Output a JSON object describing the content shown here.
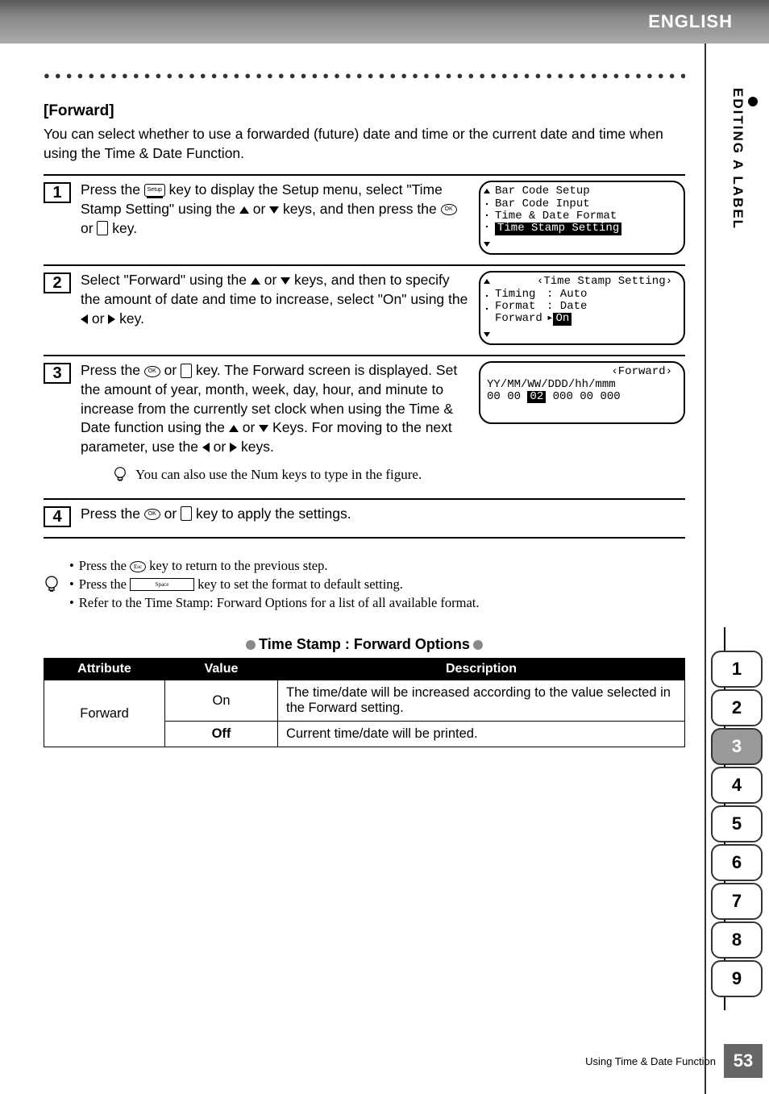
{
  "topbar": {
    "language": "ENGLISH"
  },
  "sidebar": {
    "chapter": "EDITING A LABEL"
  },
  "tabs": {
    "items": [
      "1",
      "2",
      "3",
      "4",
      "5",
      "6",
      "7",
      "8",
      "9"
    ],
    "active_index": 2
  },
  "footer": {
    "page": "53",
    "section": "Using Time & Date Function"
  },
  "heading": "[Forward]",
  "intro": "You can select whether to use a  forwarded (future) date and time or the current date and time when using the Time & Date Function.",
  "steps": {
    "s1": {
      "num": "1",
      "text_parts": {
        "a": "Press the ",
        "setup": "Setup",
        "b": " key to display the Setup menu, select \"Time Stamp Setting\" using the ",
        "c": " or ",
        "d": " keys, and then press the ",
        "e": " or ",
        "f": " key."
      },
      "screen": {
        "lines": [
          "Bar Code Setup",
          "Bar Code Input",
          "Time & Date Format"
        ],
        "selected": "Time Stamp Setting"
      }
    },
    "s2": {
      "num": "2",
      "text_parts": {
        "a": "Select \"Forward\" using the ",
        "b": " or ",
        "c": " keys, and then to specify the amount of date and time to increase, select \"On\" using the ",
        "d": " or ",
        "e": " key."
      },
      "screen": {
        "title": "‹Time Stamp Setting›",
        "rows": [
          {
            "k": "Timing",
            "v": ": Auto"
          },
          {
            "k": "Format",
            "v": ": Date"
          }
        ],
        "last_row": {
          "k": "Forward",
          "arrow": "▸",
          "v": "On"
        }
      }
    },
    "s3": {
      "num": "3",
      "text_parts": {
        "a": "Press the ",
        "b": " or ",
        "c": " key. The Forward screen is displayed. Set the amount of year, month, week, day, hour, and minute to increase from the currently set clock when using the Time & Date function using the ",
        "d": " or ",
        "e": " Keys. For moving to the next parameter, use the ",
        "f": " or ",
        "g": " keys."
      },
      "screen": {
        "title": "‹Forward›",
        "line1": "YY/MM/WW/DDD/hh/mmm",
        "values_pre": "00 00 ",
        "values_sel": "02",
        "values_post": " 000 00 000"
      },
      "hint": "You can also use the Num keys to type in the figure."
    },
    "s4": {
      "num": "4",
      "text_parts": {
        "a": "Press the ",
        "b": " or ",
        "c": " key to apply the settings."
      }
    }
  },
  "tips": {
    "t1a": "Press the ",
    "t1b": " key to return to the previous step.",
    "t2a": "Press the ",
    "space": "Space",
    "t2b": " key to set the format to default setting.",
    "t3": "Refer to the Time Stamp: Forward Options for a list of all available format.",
    "esc": "Esc"
  },
  "table": {
    "title": "Time Stamp : Forward Options",
    "headers": {
      "attr": "Attribute",
      "val": "Value",
      "desc": "Description"
    },
    "attr": "Forward",
    "rows": [
      {
        "value": "On",
        "bold": false,
        "desc": "The time/date will be increased according to the value selected in the Forward setting."
      },
      {
        "value": "Off",
        "bold": true,
        "desc": "Current time/date will be printed."
      }
    ]
  }
}
